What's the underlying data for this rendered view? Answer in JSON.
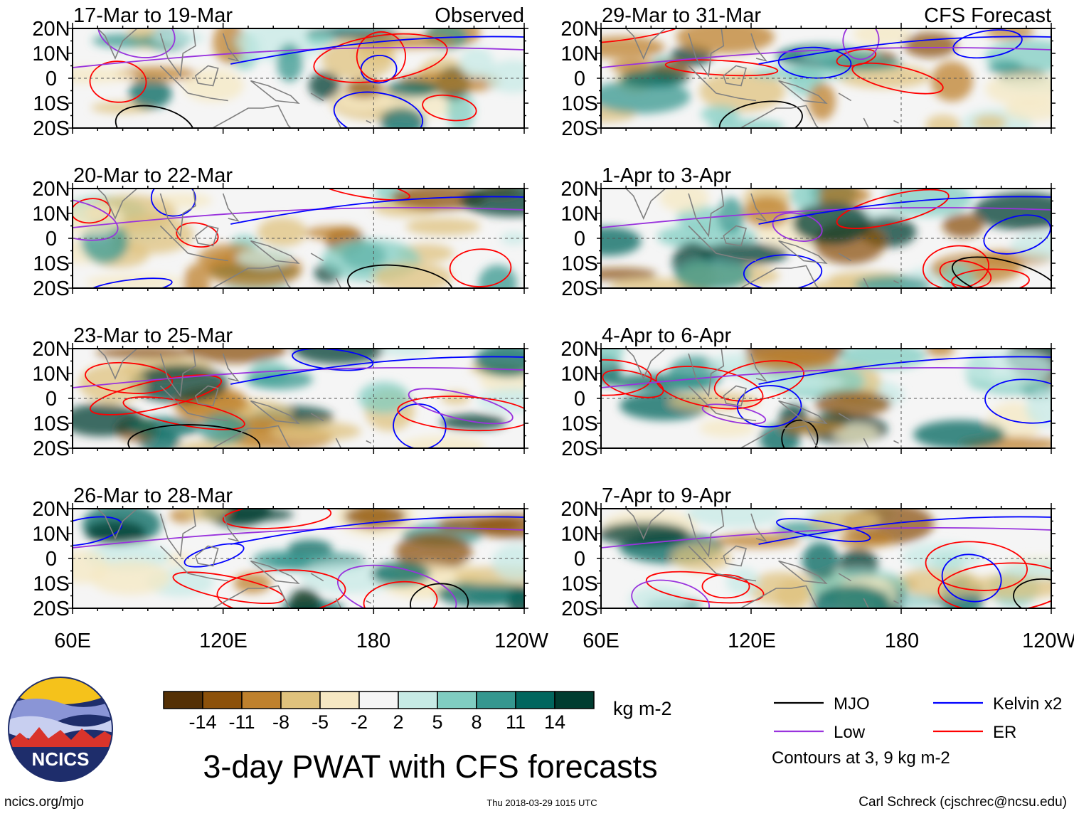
{
  "chart_data": {
    "type": "heatmap",
    "title": "3-day PWAT with CFS forecasts",
    "units": "kg m-2",
    "lat_labels": [
      "20N",
      "10N",
      "0",
      "10S",
      "20S"
    ],
    "lat_values": [
      20,
      10,
      0,
      -10,
      -20
    ],
    "lon_labels": [
      "60E",
      "120E",
      "180",
      "120W"
    ],
    "lon_values": [
      60,
      120,
      180,
      240
    ],
    "panels": [
      {
        "period": "17-Mar to 19-Mar",
        "label": "Observed",
        "column": "left"
      },
      {
        "period": "20-Mar to 22-Mar",
        "label": "",
        "column": "left"
      },
      {
        "period": "23-Mar to 25-Mar",
        "label": "",
        "column": "left"
      },
      {
        "period": "26-Mar to 28-Mar",
        "label": "",
        "column": "left"
      },
      {
        "period": "29-Mar to 31-Mar",
        "label": "CFS Forecast",
        "column": "right"
      },
      {
        "period": "1-Apr to 3-Apr",
        "label": "",
        "column": "right"
      },
      {
        "period": "4-Apr to 6-Apr",
        "label": "",
        "column": "right"
      },
      {
        "period": "7-Apr to 9-Apr",
        "label": "",
        "column": "right"
      }
    ],
    "colorbar": {
      "ticks": [
        "-14",
        "-11",
        "-8",
        "-5",
        "-2",
        "2",
        "5",
        "8",
        "11",
        "14"
      ],
      "colors": [
        "#543005",
        "#8c510a",
        "#bf812d",
        "#dfc27d",
        "#f6e8c3",
        "#f5f5f5",
        "#c7eae5",
        "#80cdc1",
        "#35978f",
        "#01665e",
        "#003c30"
      ]
    },
    "legend": [
      {
        "label": "MJO",
        "color": "#000000"
      },
      {
        "label": "Kelvin x2",
        "color": "#0000ff"
      },
      {
        "label": "Low",
        "color": "#9933dd"
      },
      {
        "label": "ER",
        "color": "#ff0000"
      }
    ],
    "contour_note": "Contours at 3, 9 kg m-2"
  },
  "logo": {
    "text": "NCICS"
  },
  "footer": {
    "url": "ncics.org/mjo",
    "timestamp": "Thu 2018-03-29 1015 UTC",
    "credit": "Carl Schreck (cjschrec@ncsu.edu)"
  }
}
